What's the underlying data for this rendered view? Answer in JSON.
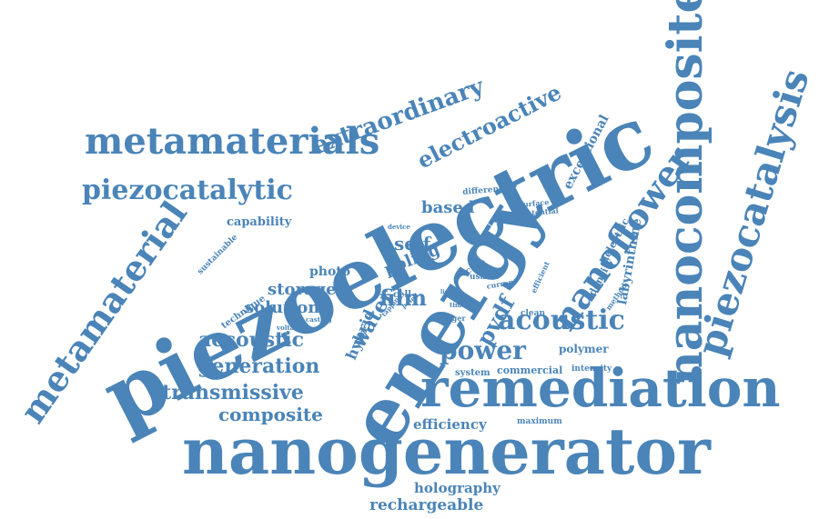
{
  "word_color": "#4a84b8",
  "words": [
    {
      "text": "piezoelectric"
    },
    {
      "text": "energy"
    },
    {
      "text": "nanogenerator"
    },
    {
      "text": "remediation"
    },
    {
      "text": "nanocomposite"
    },
    {
      "text": "piezocatalysis"
    },
    {
      "text": "metamaterials"
    },
    {
      "text": "metamaterial"
    },
    {
      "text": "nanoflower"
    },
    {
      "text": "acoustic"
    },
    {
      "text": "piezocatalytic"
    },
    {
      "text": "extraordinary"
    },
    {
      "text": "electroactive"
    },
    {
      "text": "power"
    },
    {
      "text": "accoustic"
    },
    {
      "text": "generation"
    },
    {
      "text": "transmissive"
    },
    {
      "text": "composite"
    },
    {
      "text": "pvdf"
    },
    {
      "text": "film"
    },
    {
      "text": "water"
    },
    {
      "text": "poling"
    },
    {
      "text": "self"
    },
    {
      "text": "based"
    },
    {
      "text": "storage"
    },
    {
      "text": "solution"
    },
    {
      "text": "hybrid"
    },
    {
      "text": "capability"
    },
    {
      "text": "photo"
    },
    {
      "text": "labyrinthine"
    },
    {
      "text": "exceptional"
    },
    {
      "text": "efficiency"
    },
    {
      "text": "holography"
    },
    {
      "text": "rechargeable"
    },
    {
      "text": "polymer"
    },
    {
      "text": "commercial"
    },
    {
      "text": "density"
    },
    {
      "text": "dielectric"
    },
    {
      "text": "system"
    },
    {
      "text": "intensity"
    },
    {
      "text": "maximum"
    },
    {
      "text": "different"
    },
    {
      "text": "surface"
    },
    {
      "text": "potential"
    },
    {
      "text": "device"
    },
    {
      "text": "sustainable"
    },
    {
      "text": "technique"
    },
    {
      "text": "voltage"
    },
    {
      "text": "casting"
    },
    {
      "text": "tapping"
    },
    {
      "text": "poled"
    },
    {
      "text": "cell"
    },
    {
      "text": "light"
    },
    {
      "text": "ctab"
    },
    {
      "text": "usable"
    },
    {
      "text": "current"
    },
    {
      "text": "efficient"
    },
    {
      "text": "time"
    },
    {
      "text": "clean"
    },
    {
      "text": "finger"
    },
    {
      "text": "method"
    }
  ]
}
